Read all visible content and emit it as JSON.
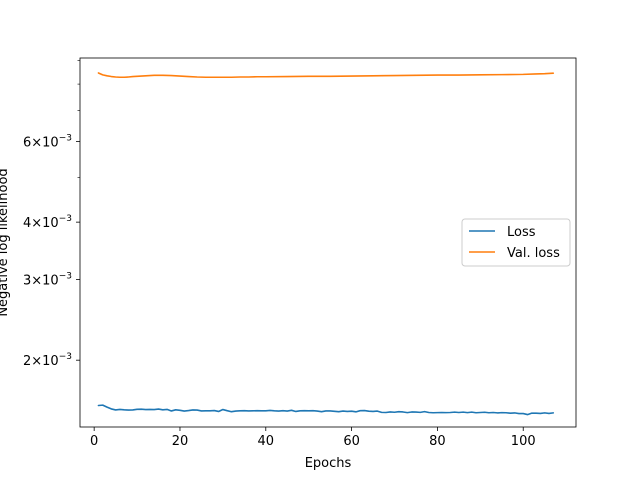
{
  "chart_data": {
    "type": "line",
    "title": "",
    "xlabel": "Epochs",
    "ylabel": "Negative log likelihood",
    "xscale": "linear",
    "yscale": "log",
    "xlim": [
      -3.3,
      112.3
    ],
    "ylim": [
      0.00143,
      0.00912
    ],
    "x_ticks": [
      0,
      20,
      40,
      60,
      80,
      100
    ],
    "y_ticks": [
      {
        "value": 0.002,
        "mantissa": "2",
        "base": "10",
        "exponent": "−3"
      },
      {
        "value": 0.003,
        "mantissa": "3",
        "base": "10",
        "exponent": "−3"
      },
      {
        "value": 0.004,
        "mantissa": "4",
        "base": "10",
        "exponent": "−3"
      },
      {
        "value": 0.006,
        "mantissa": "6",
        "base": "10",
        "exponent": "−3"
      }
    ],
    "y_minor_ticks": [
      0.005,
      0.007,
      0.008,
      0.009
    ],
    "grid": false,
    "legend_position": "center-right",
    "series": [
      {
        "name": "Loss",
        "color": "#1f77b4",
        "x": [
          1,
          2,
          3,
          4,
          5,
          6,
          7,
          8,
          9,
          10,
          11,
          12,
          13,
          14,
          15,
          16,
          17,
          18,
          19,
          20,
          21,
          22,
          23,
          24,
          25,
          26,
          27,
          28,
          29,
          30,
          31,
          32,
          33,
          34,
          35,
          36,
          37,
          38,
          39,
          40,
          41,
          42,
          43,
          44,
          45,
          46,
          47,
          48,
          49,
          50,
          51,
          52,
          53,
          54,
          55,
          56,
          57,
          58,
          59,
          60,
          61,
          62,
          63,
          64,
          65,
          66,
          67,
          68,
          69,
          70,
          71,
          72,
          73,
          74,
          75,
          76,
          77,
          78,
          79,
          80,
          81,
          82,
          83,
          84,
          85,
          86,
          87,
          88,
          89,
          90,
          91,
          92,
          93,
          94,
          95,
          96,
          97,
          98,
          99,
          100,
          101,
          102,
          103,
          104,
          105,
          106,
          107
        ],
        "values": [
          0.001593,
          0.001596,
          0.00158,
          0.001566,
          0.001558,
          0.001562,
          0.001559,
          0.001557,
          0.001558,
          0.001563,
          0.001564,
          0.001561,
          0.001562,
          0.001561,
          0.001565,
          0.001559,
          0.001562,
          0.00155,
          0.001559,
          0.001555,
          0.001549,
          0.001553,
          0.001558,
          0.001557,
          0.00155,
          0.001551,
          0.001551,
          0.001553,
          0.001546,
          0.001561,
          0.001552,
          0.001544,
          0.001549,
          0.001551,
          0.001552,
          0.00155,
          0.001551,
          0.001552,
          0.001551,
          0.001551,
          0.001554,
          0.001551,
          0.001549,
          0.001552,
          0.001549,
          0.001555,
          0.001546,
          0.001551,
          0.001552,
          0.001551,
          0.001552,
          0.001549,
          0.001544,
          0.00155,
          0.00155,
          0.001547,
          0.001544,
          0.001549,
          0.001546,
          0.001548,
          0.001543,
          0.001552,
          0.001553,
          0.001548,
          0.001546,
          0.001549,
          0.001539,
          0.001538,
          0.001542,
          0.00154,
          0.001544,
          0.001542,
          0.001537,
          0.001542,
          0.001541,
          0.001539,
          0.001545,
          0.001538,
          0.001536,
          0.001537,
          0.001538,
          0.001537,
          0.001538,
          0.001541,
          0.001538,
          0.001541,
          0.001537,
          0.001541,
          0.001536,
          0.001538,
          0.00154,
          0.001536,
          0.001538,
          0.001535,
          0.001537,
          0.001536,
          0.001533,
          0.001535,
          0.00153,
          0.00153,
          0.001522,
          0.001533,
          0.001533,
          0.001531,
          0.001535,
          0.001531,
          0.001535
        ]
      },
      {
        "name": "Val. loss",
        "color": "#ff7f0e",
        "x": [
          1,
          2,
          3,
          4,
          5,
          6,
          7,
          8,
          9,
          10,
          12,
          14,
          16,
          18,
          20,
          22,
          24,
          26,
          28,
          30,
          32,
          34,
          36,
          38,
          40,
          45,
          50,
          55,
          60,
          65,
          70,
          75,
          80,
          85,
          90,
          95,
          100,
          103,
          105,
          107
        ],
        "values": [
          0.00846,
          0.00838,
          0.00834,
          0.00831,
          0.00829,
          0.00828,
          0.00828,
          0.00829,
          0.00831,
          0.00832,
          0.00834,
          0.00836,
          0.00836,
          0.00835,
          0.00833,
          0.00831,
          0.00829,
          0.00828,
          0.00828,
          0.00828,
          0.00828,
          0.00829,
          0.00829,
          0.0083,
          0.0083,
          0.00831,
          0.00832,
          0.00832,
          0.00833,
          0.00834,
          0.00835,
          0.00836,
          0.00837,
          0.00837,
          0.00838,
          0.00839,
          0.0084,
          0.00842,
          0.00843,
          0.00845
        ]
      }
    ]
  }
}
